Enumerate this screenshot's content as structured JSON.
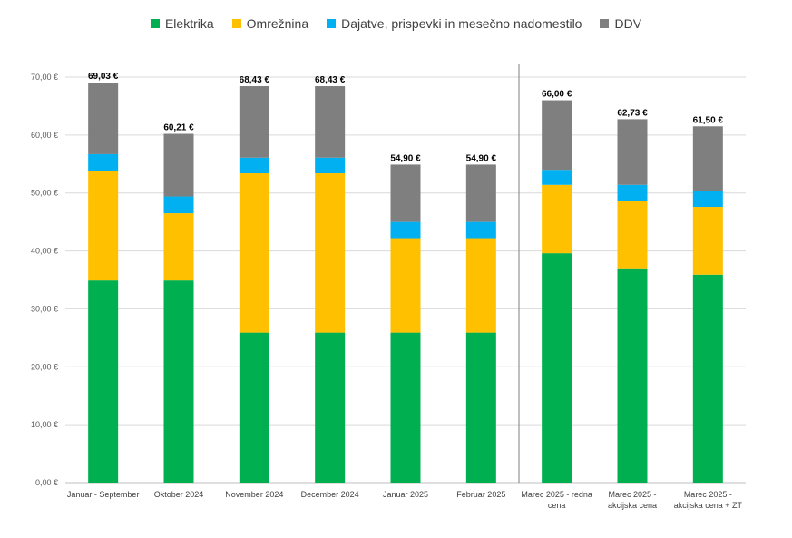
{
  "chart_data": {
    "type": "bar",
    "stacked": true,
    "title": "",
    "xlabel": "",
    "ylabel": "",
    "ylim": [
      0,
      70
    ],
    "y_ticks": [
      "0,00 €",
      "10,00 €",
      "20,00 €",
      "30,00 €",
      "40,00 €",
      "50,00 €",
      "60,00 €",
      "70,00 €"
    ],
    "grid": true,
    "legend_position": "top",
    "categories": [
      [
        "Januar - September"
      ],
      [
        "Oktober 2024"
      ],
      [
        "November 2024"
      ],
      [
        "December 2024"
      ],
      [
        "Januar 2025"
      ],
      [
        "Februar 2025"
      ],
      [
        "Marec 2025 - redna",
        "cena"
      ],
      [
        "Marec 2025 -",
        "akcijska cena"
      ],
      [
        "Marec 2025 -",
        "akcijska cena + ZT"
      ]
    ],
    "separator_after_index": 5,
    "series": [
      {
        "name": "Elektrika",
        "color": "#00b050",
        "values": [
          34.9,
          34.9,
          25.9,
          25.9,
          25.9,
          25.9,
          39.6,
          37.0,
          35.9
        ]
      },
      {
        "name": "Omrežnina",
        "color": "#ffc000",
        "values": [
          18.9,
          11.6,
          27.5,
          27.5,
          16.3,
          16.3,
          11.8,
          11.7,
          11.7
        ]
      },
      {
        "name": "Dajatve, prispevki in mesečno nadomestilo",
        "color": "#00b0f0",
        "values": [
          2.9,
          2.9,
          2.7,
          2.7,
          2.8,
          2.8,
          2.6,
          2.7,
          2.8
        ]
      },
      {
        "name": "DDV",
        "color": "#7f7f7f",
        "values": [
          12.33,
          10.81,
          12.33,
          12.33,
          9.9,
          9.9,
          12.0,
          11.33,
          11.1
        ]
      }
    ],
    "totals": [
      69.03,
      60.21,
      68.43,
      68.43,
      54.9,
      54.9,
      66.0,
      62.73,
      61.5
    ],
    "total_labels": [
      "69,03 €",
      "60,21 €",
      "68,43 €",
      "68,43 €",
      "54,90 €",
      "54,90 €",
      "66,00 €",
      "62,73 €",
      "61,50 €"
    ]
  }
}
